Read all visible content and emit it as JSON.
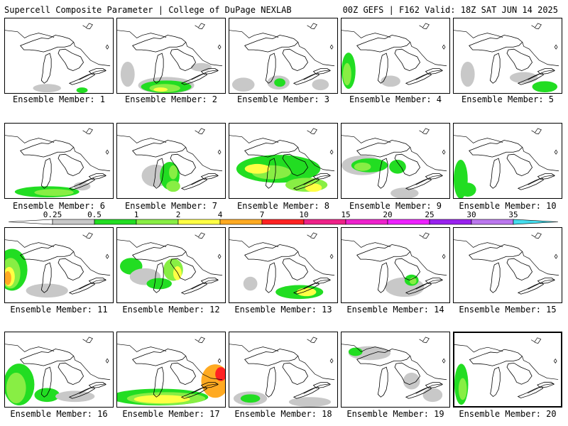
{
  "header": {
    "left_title": "Supercell Composite Parameter | College of DuPage NEXLAB",
    "right_title": "00Z GEFS | F162 Valid: 18Z SAT JUN 14 2025"
  },
  "colors": {
    "c0_25": "#c8c8c8",
    "c0_5": "#22dd22",
    "c1": "#88ee44",
    "c2": "#ffff44",
    "c4": "#ffaa22",
    "c7": "#ff2222",
    "c10": "#ee2288",
    "c15": "#ee22cc",
    "c20": "#ee22ff",
    "c25": "#9922ee",
    "c30": "#bb77ee",
    "c35": "#44ddee",
    "outline": "#000000"
  },
  "colorbar": {
    "ticks": [
      "0.25",
      "0.5",
      "1",
      "2",
      "4",
      "7",
      "10",
      "15",
      "20",
      "25",
      "30",
      "35"
    ],
    "colors": [
      "#c8c8c8",
      "#22dd22",
      "#88ee44",
      "#ffff44",
      "#ffaa22",
      "#ff2222",
      "#ee2288",
      "#ee22cc",
      "#ee22ff",
      "#9922ee",
      "#bb77ee",
      "#44ddee"
    ]
  },
  "members": [
    {
      "label": "Ensemble Member: 1"
    },
    {
      "label": "Ensemble Member: 2"
    },
    {
      "label": "Ensemble Member: 3"
    },
    {
      "label": "Ensemble Member: 4"
    },
    {
      "label": "Ensemble Member: 5"
    },
    {
      "label": "Ensemble Member: 6"
    },
    {
      "label": "Ensemble Member: 7"
    },
    {
      "label": "Ensemble Member: 8"
    },
    {
      "label": "Ensemble Member: 9"
    },
    {
      "label": "Ensemble Member: 10"
    },
    {
      "label": "Ensemble Member: 11"
    },
    {
      "label": "Ensemble Member: 12"
    },
    {
      "label": "Ensemble Member: 13"
    },
    {
      "label": "Ensemble Member: 14"
    },
    {
      "label": "Ensemble Member: 15"
    },
    {
      "label": "Ensemble Member: 16"
    },
    {
      "label": "Ensemble Member: 17"
    },
    {
      "label": "Ensemble Member: 18"
    },
    {
      "label": "Ensemble Member: 19"
    },
    {
      "label": "Ensemble Member: 20"
    }
  ]
}
